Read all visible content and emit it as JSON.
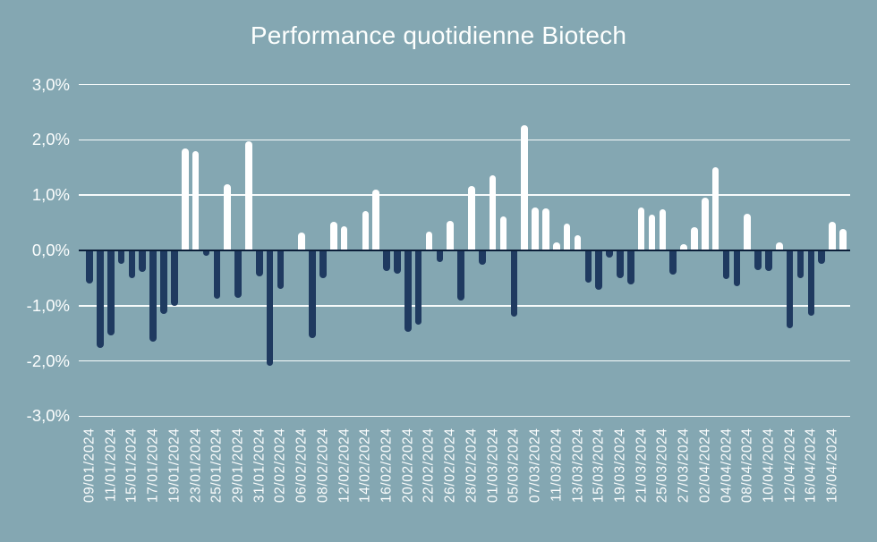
{
  "title": "Performance quotidienne Biotech",
  "colors": {
    "background": "#84A7B2",
    "positive_bar": "#FFFFFF",
    "negative_bar": "#1F3A60",
    "gridline": "#F7FBFB",
    "zero_line": "#0C1F3A",
    "text": "#FDFFFE"
  },
  "y_axis": {
    "unit": "%",
    "decimal_separator": ",",
    "tick_labels": [
      "3,0%",
      "2,0%",
      "1,0%",
      "0,0%",
      "-1,0%",
      "-2,0%",
      "-3,0%"
    ],
    "tick_values": [
      3,
      2,
      1,
      0,
      -1,
      -2,
      -3
    ]
  },
  "x_axis": {
    "visible_tick_labels": [
      "09/01/2024",
      "11/01/2024",
      "15/01/2024",
      "17/01/2024",
      "19/01/2024",
      "23/01/2024",
      "25/01/2024",
      "29/01/2024",
      "31/01/2024",
      "02/02/2024",
      "06/02/2024",
      "08/02/2024",
      "12/02/2024",
      "14/02/2024",
      "16/02/2024",
      "20/02/2024",
      "22/02/2024",
      "26/02/2024",
      "28/02/2024",
      "01/03/2024",
      "05/03/2024",
      "07/03/2024",
      "11/03/2024",
      "13/03/2024",
      "15/03/2024",
      "19/03/2024",
      "21/03/2024",
      "25/03/2024",
      "27/03/2024",
      "02/04/2024",
      "04/04/2024",
      "08/04/2024",
      "10/04/2024",
      "12/04/2024",
      "16/04/2024",
      "18/04/2024"
    ],
    "label_every_n_bars": 2
  },
  "chart_data": {
    "type": "bar",
    "title": "Performance quotidienne Biotech",
    "xlabel": "",
    "ylabel": "",
    "ylim": [
      -3,
      3
    ],
    "grid": true,
    "legend": false,
    "positive_color": "#FFFFFF",
    "negative_color": "#1F3A60",
    "points": [
      {
        "date": "09/01/2024",
        "value": -0.6
      },
      {
        "date": "10/01/2024",
        "value": -1.77
      },
      {
        "date": "11/01/2024",
        "value": -1.53
      },
      {
        "date": "12/01/2024",
        "value": -0.25
      },
      {
        "date": "15/01/2024",
        "value": -0.5
      },
      {
        "date": "16/01/2024",
        "value": -0.39
      },
      {
        "date": "17/01/2024",
        "value": -1.65
      },
      {
        "date": "18/01/2024",
        "value": -1.15
      },
      {
        "date": "19/01/2024",
        "value": -1.0
      },
      {
        "date": "22/01/2024",
        "value": 1.84
      },
      {
        "date": "23/01/2024",
        "value": 1.8
      },
      {
        "date": "24/01/2024",
        "value": -0.1
      },
      {
        "date": "25/01/2024",
        "value": -0.88
      },
      {
        "date": "26/01/2024",
        "value": 1.2
      },
      {
        "date": "29/01/2024",
        "value": -0.85
      },
      {
        "date": "30/01/2024",
        "value": 1.97
      },
      {
        "date": "31/01/2024",
        "value": -0.47
      },
      {
        "date": "01/02/2024",
        "value": -2.09
      },
      {
        "date": "02/02/2024",
        "value": -0.7
      },
      {
        "date": "05/02/2024",
        "value": 0.0
      },
      {
        "date": "06/02/2024",
        "value": 0.32
      },
      {
        "date": "07/02/2024",
        "value": -1.58
      },
      {
        "date": "08/02/2024",
        "value": -0.5
      },
      {
        "date": "09/02/2024",
        "value": 0.51
      },
      {
        "date": "12/02/2024",
        "value": 0.43
      },
      {
        "date": "13/02/2024",
        "value": 0.0
      },
      {
        "date": "14/02/2024",
        "value": 0.71
      },
      {
        "date": "15/02/2024",
        "value": 1.1
      },
      {
        "date": "16/02/2024",
        "value": -0.38
      },
      {
        "date": "19/02/2024",
        "value": -0.42
      },
      {
        "date": "20/02/2024",
        "value": -1.48
      },
      {
        "date": "21/02/2024",
        "value": -1.34
      },
      {
        "date": "22/02/2024",
        "value": 0.34
      },
      {
        "date": "23/02/2024",
        "value": -0.21
      },
      {
        "date": "26/02/2024",
        "value": 0.54
      },
      {
        "date": "27/02/2024",
        "value": -0.9
      },
      {
        "date": "28/02/2024",
        "value": 1.16
      },
      {
        "date": "29/02/2024",
        "value": -0.26
      },
      {
        "date": "01/03/2024",
        "value": 1.36
      },
      {
        "date": "04/03/2024",
        "value": 0.62
      },
      {
        "date": "05/03/2024",
        "value": -1.2
      },
      {
        "date": "06/03/2024",
        "value": 2.27
      },
      {
        "date": "07/03/2024",
        "value": 0.78
      },
      {
        "date": "08/03/2024",
        "value": 0.76
      },
      {
        "date": "11/03/2024",
        "value": 0.15
      },
      {
        "date": "12/03/2024",
        "value": 0.49
      },
      {
        "date": "13/03/2024",
        "value": 0.28
      },
      {
        "date": "14/03/2024",
        "value": -0.58
      },
      {
        "date": "15/03/2024",
        "value": -0.72
      },
      {
        "date": "18/03/2024",
        "value": -0.13
      },
      {
        "date": "19/03/2024",
        "value": -0.5
      },
      {
        "date": "20/03/2024",
        "value": -0.61
      },
      {
        "date": "21/03/2024",
        "value": 0.77
      },
      {
        "date": "22/03/2024",
        "value": 0.64
      },
      {
        "date": "25/03/2024",
        "value": 0.75
      },
      {
        "date": "26/03/2024",
        "value": -0.43
      },
      {
        "date": "27/03/2024",
        "value": 0.12
      },
      {
        "date": "28/03/2024",
        "value": 0.42
      },
      {
        "date": "02/04/2024",
        "value": 0.96
      },
      {
        "date": "03/04/2024",
        "value": 1.5
      },
      {
        "date": "04/04/2024",
        "value": -0.51
      },
      {
        "date": "05/04/2024",
        "value": -0.65
      },
      {
        "date": "08/04/2024",
        "value": 0.67
      },
      {
        "date": "09/04/2024",
        "value": -0.36
      },
      {
        "date": "10/04/2024",
        "value": -0.37
      },
      {
        "date": "11/04/2024",
        "value": 0.15
      },
      {
        "date": "12/04/2024",
        "value": -1.4
      },
      {
        "date": "15/04/2024",
        "value": -0.5
      },
      {
        "date": "16/04/2024",
        "value": -1.18
      },
      {
        "date": "17/04/2024",
        "value": -0.25
      },
      {
        "date": "18/04/2024",
        "value": 0.52
      },
      {
        "date": "19/04/2024",
        "value": 0.39
      }
    ]
  }
}
